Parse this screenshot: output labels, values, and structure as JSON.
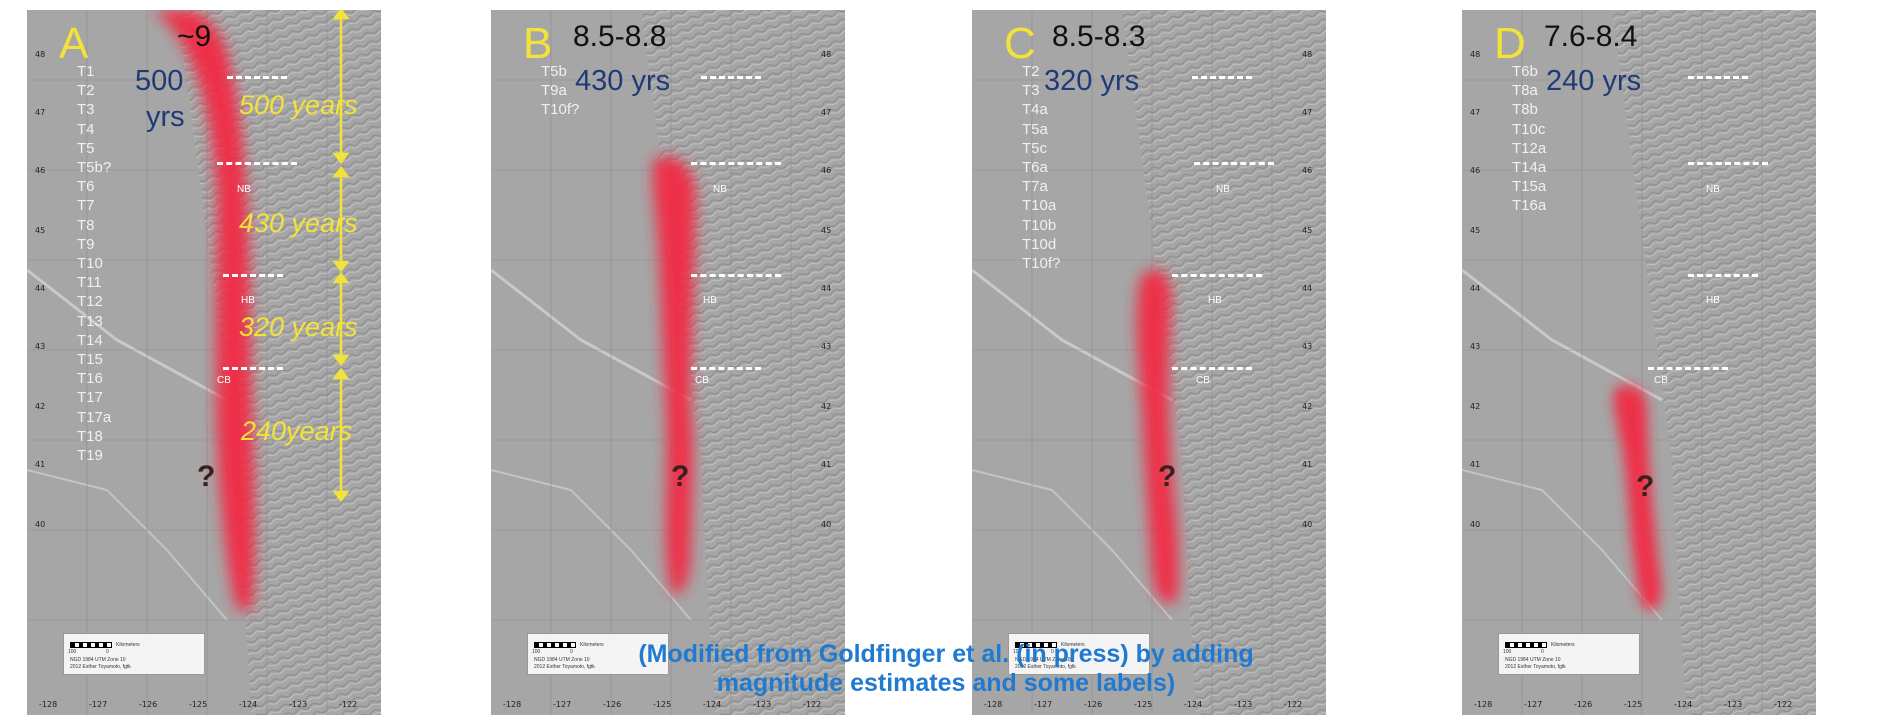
{
  "panels": [
    {
      "letter": "A",
      "magnitude": "~9",
      "recurrence_lines": [
        "500",
        "yrs"
      ],
      "turbidites": [
        "T1",
        "T2",
        "T3",
        "T4",
        "T5",
        "T5b?",
        "T6",
        "T7",
        "T8",
        "T9",
        "T10",
        "T11",
        "T12",
        "T13",
        "T14",
        "T15",
        "T16",
        "T17",
        "T17a",
        "T18",
        "T19"
      ]
    },
    {
      "letter": "B",
      "magnitude": "8.5-8.8",
      "recurrence_lines": [
        "430 yrs"
      ],
      "turbidites": [
        "T5b",
        "T9a",
        "T10f?"
      ]
    },
    {
      "letter": "C",
      "magnitude": "8.5-8.3",
      "recurrence_lines": [
        "320 yrs"
      ],
      "turbidites": [
        "T2",
        "T3",
        "T4a",
        "T5a",
        "T5c",
        "T6a",
        "T7a",
        "T10a",
        "T10b",
        "T10d",
        "T10f?"
      ]
    },
    {
      "letter": "D",
      "magnitude": "7.6-8.4",
      "recurrence_lines": [
        "240 yrs"
      ],
      "turbidites": [
        "T6b",
        "T8a",
        "T8b",
        "T10c",
        "T12a",
        "T14a",
        "T15a",
        "T16a"
      ]
    }
  ],
  "segment_labels": [
    "NB",
    "HB",
    "CB"
  ],
  "uncertain_marker": "?",
  "recurrence_intervals": [
    "500 years",
    "430 years",
    "320 years",
    "240years"
  ],
  "latitude_ticks": [
    "48",
    "47",
    "46",
    "45",
    "44",
    "43",
    "42",
    "41",
    "40"
  ],
  "longitude_ticks": [
    "-128",
    "-127",
    "-126",
    "-125",
    "-124",
    "-123",
    "-122"
  ],
  "scale": {
    "label": "Kilometers",
    "zero": "100",
    "end": "0",
    "datum_1": "NGD 1984 UTM Zone 10",
    "datum_2": "2012 Esther Toyamoto, fgtk"
  },
  "caption": [
    "(Modified from Goldfinger et al. (in press) by adding",
    "magnitude estimates and some labels)"
  ],
  "colors": {
    "rupture": "#f22c44",
    "accent": "#f3e23a",
    "caption": "#1f7ad0",
    "recurrence_text": "#1f3a78"
  }
}
